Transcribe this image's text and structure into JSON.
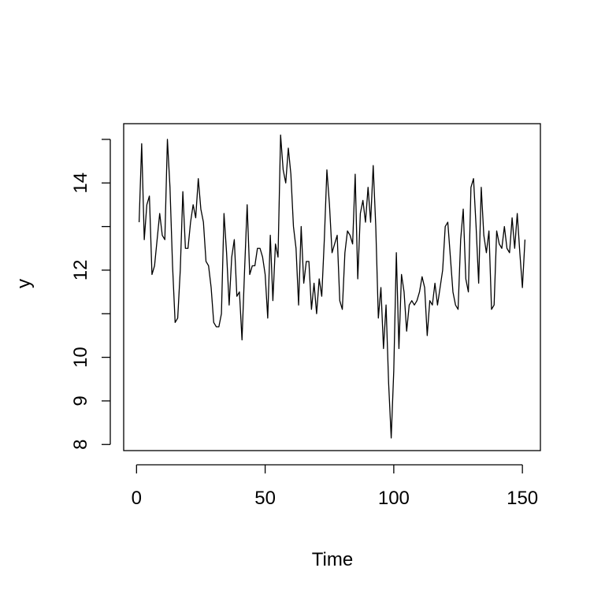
{
  "chart_data": {
    "type": "line",
    "xlabel": "Time",
    "ylabel": "y",
    "x": [
      1,
      2,
      3,
      4,
      5,
      6,
      7,
      8,
      9,
      10,
      11,
      12,
      13,
      14,
      15,
      16,
      17,
      18,
      19,
      20,
      21,
      22,
      23,
      24,
      25,
      26,
      27,
      28,
      29,
      30,
      31,
      32,
      33,
      34,
      35,
      36,
      37,
      38,
      39,
      40,
      41,
      42,
      43,
      44,
      45,
      46,
      47,
      48,
      49,
      50,
      51,
      52,
      53,
      54,
      55,
      56,
      57,
      58,
      59,
      60,
      61,
      62,
      63,
      64,
      65,
      66,
      67,
      68,
      69,
      70,
      71,
      72,
      73,
      74,
      75,
      76,
      77,
      78,
      79,
      80,
      81,
      82,
      83,
      84,
      85,
      86,
      87,
      88,
      89,
      90,
      91,
      92,
      93,
      94,
      95,
      96,
      97,
      98,
      99,
      100,
      101,
      102,
      103,
      104,
      105,
      106,
      107,
      108,
      109,
      110,
      111,
      112,
      113,
      114,
      115,
      116,
      117,
      118,
      119,
      120,
      121,
      122,
      123,
      124,
      125,
      126,
      127,
      128,
      129,
      130,
      131,
      132,
      133,
      134,
      135,
      136,
      137,
      138,
      139,
      140,
      141,
      142,
      143,
      144,
      145,
      146,
      147,
      148,
      149,
      150,
      151
    ],
    "series": [
      {
        "name": "y",
        "color": "#000000",
        "values": [
          13.1,
          14.9,
          12.7,
          13.5,
          13.7,
          11.9,
          12.1,
          12.7,
          13.3,
          12.8,
          12.7,
          15.0,
          13.9,
          12.1,
          10.8,
          10.9,
          12.0,
          13.8,
          12.5,
          12.5,
          13.1,
          13.5,
          13.2,
          14.1,
          13.4,
          13.1,
          12.2,
          12.1,
          11.6,
          10.8,
          10.7,
          10.7,
          11.0,
          13.3,
          12.4,
          11.2,
          12.3,
          12.7,
          11.4,
          11.5,
          10.4,
          12.0,
          13.5,
          11.9,
          12.1,
          12.1,
          12.5,
          12.5,
          12.3,
          11.9,
          10.9,
          12.8,
          11.3,
          12.6,
          12.3,
          15.1,
          14.3,
          14.0,
          14.8,
          14.2,
          13.0,
          12.5,
          11.2,
          13.0,
          11.7,
          12.2,
          12.2,
          11.1,
          11.7,
          11.0,
          11.8,
          11.4,
          12.7,
          14.3,
          13.5,
          12.4,
          12.6,
          12.8,
          11.3,
          11.1,
          12.4,
          12.9,
          12.8,
          12.6,
          14.2,
          11.8,
          13.3,
          13.6,
          13.1,
          13.9,
          13.1,
          14.4,
          13.0,
          10.9,
          11.6,
          10.2,
          11.2,
          9.4,
          8.15,
          9.7,
          12.4,
          10.2,
          11.9,
          11.5,
          10.6,
          11.2,
          11.3,
          11.2,
          11.3,
          11.5,
          11.85,
          11.6,
          10.5,
          11.3,
          11.2,
          11.7,
          11.2,
          11.6,
          12.0,
          13.0,
          13.1,
          12.3,
          11.5,
          11.2,
          11.1,
          12.7,
          13.4,
          11.8,
          11.5,
          13.9,
          14.1,
          13.0,
          11.7,
          13.9,
          12.8,
          12.4,
          12.9,
          11.1,
          11.2,
          12.9,
          12.6,
          12.5,
          13.0,
          12.5,
          12.4,
          13.2,
          12.5,
          13.3,
          12.4,
          11.6,
          12.7
        ]
      }
    ],
    "xlim": [
      -5,
      157
    ],
    "xticks": [
      0,
      50,
      100,
      150
    ],
    "ylim": [
      7.86,
      15.36
    ],
    "yticks": [
      8,
      9,
      10,
      12,
      14
    ],
    "yminor": [
      11,
      13,
      15
    ],
    "grid": false
  }
}
